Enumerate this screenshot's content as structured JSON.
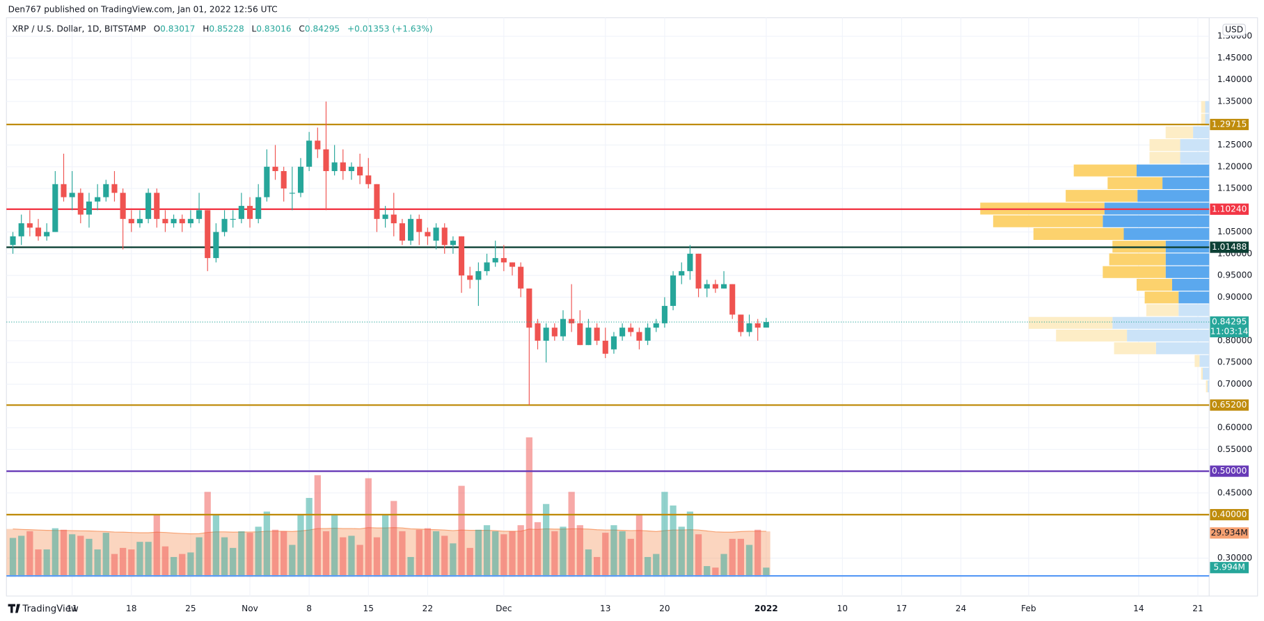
{
  "header": {
    "published": "Den767 published on TradingView.com, Jan 01, 2022 12:56 UTC",
    "footer": "TradingView"
  },
  "chart_data": {
    "type": "candlestick",
    "title": "XRP / U.S. Dollar, 1D, BITSTAMP",
    "currency": "USD",
    "ohlc_keys": [
      "O",
      "H",
      "L",
      "C"
    ],
    "change": "+0.01353 (+1.63%)",
    "countdown": "11:03:14",
    "up_color": "#26a69a",
    "down_color": "#ef5350",
    "grid": true,
    "ylim": [
      0.2574,
      1.5426
    ],
    "yticks": [
      {
        "value": 1.5,
        "label": "1.50000"
      },
      {
        "value": 1.45,
        "label": "1.45000"
      },
      {
        "value": 1.4,
        "label": "1.40000"
      },
      {
        "value": 1.35,
        "label": "1.35000"
      },
      {
        "value": 1.25,
        "label": "1.25000"
      },
      {
        "value": 1.2,
        "label": "1.20000"
      },
      {
        "value": 1.15,
        "label": "1.15000"
      },
      {
        "value": 1.05,
        "label": "1.05000"
      },
      {
        "value": 1.0,
        "label": "1.00000"
      },
      {
        "value": 0.95,
        "label": "0.95000"
      },
      {
        "value": 0.9,
        "label": "0.90000"
      },
      {
        "value": 0.8,
        "label": "0.80000"
      },
      {
        "value": 0.75,
        "label": "0.75000"
      },
      {
        "value": 0.7,
        "label": "0.70000"
      },
      {
        "value": 0.6,
        "label": "0.60000"
      },
      {
        "value": 0.55,
        "label": "0.55000"
      },
      {
        "value": 0.45,
        "label": "0.45000"
      },
      {
        "value": 0.3,
        "label": "0.30000"
      }
    ],
    "levels": [
      {
        "value": 1.29715,
        "color": "#bf8c0c"
      },
      {
        "value": 1.1024,
        "label": "1.10240",
        "color": "#f23645"
      },
      {
        "value": 1.01488,
        "color": "#0d4035"
      },
      {
        "value": 0.652,
        "label": "0.65200",
        "color": "#bf8c0c"
      },
      {
        "value": 0.5,
        "label": "0.50000",
        "color": "#673ab7"
      },
      {
        "value": 0.4,
        "label": "0.40000",
        "color": "#bf8c0c"
      }
    ],
    "categories": [
      null,
      null,
      null,
      null,
      null,
      null,
      null,
      "11",
      null,
      null,
      null,
      null,
      null,
      null,
      "18",
      null,
      null,
      null,
      null,
      null,
      null,
      "25",
      null,
      null,
      null,
      null,
      null,
      null,
      "Nov",
      null,
      null,
      null,
      null,
      null,
      null,
      "8",
      null,
      null,
      null,
      null,
      null,
      null,
      "15",
      null,
      null,
      null,
      null,
      null,
      null,
      "22",
      null,
      null,
      null,
      null,
      null,
      null,
      null,
      null,
      "Dec",
      null,
      null,
      null,
      null,
      null,
      null,
      null,
      null,
      null,
      null,
      null,
      "13",
      null,
      null,
      null,
      null,
      null,
      null,
      "20",
      null,
      null,
      null,
      null,
      null,
      null,
      null,
      null,
      null,
      null,
      null,
      "2022",
      null,
      null,
      null,
      null,
      null,
      null,
      null,
      null,
      "10",
      null,
      null,
      null,
      null,
      null,
      null,
      "17",
      null,
      null,
      null,
      null,
      null,
      null,
      "24",
      null,
      null,
      null,
      null,
      null,
      null,
      null,
      "Feb",
      null,
      null,
      null,
      null,
      null,
      null,
      null,
      null,
      null,
      null,
      null,
      null,
      "14",
      null,
      null,
      null,
      null,
      null,
      null,
      "21",
      null
    ],
    "open": [
      1.02,
      1.04,
      1.07,
      1.06,
      1.04,
      1.05,
      1.16,
      1.13,
      1.14,
      1.09,
      1.12,
      1.13,
      1.16,
      1.14,
      1.08,
      1.07,
      1.08,
      1.14,
      1.08,
      1.07,
      1.08,
      1.07,
      1.08,
      1.1,
      0.99,
      1.05,
      1.08,
      1.08,
      1.11,
      1.08,
      1.13,
      1.2,
      1.19,
      1.14,
      1.14,
      1.2,
      1.26,
      1.24,
      1.19,
      1.21,
      1.19,
      1.2,
      1.18,
      1.16,
      1.08,
      1.09,
      1.07,
      1.03,
      1.08,
      1.05,
      1.03,
      1.06,
      1.02,
      1.04,
      0.95,
      0.94,
      0.96,
      0.98,
      0.99,
      0.98,
      0.97,
      0.92,
      0.84,
      0.8,
      0.83,
      0.81,
      0.85,
      0.84,
      0.79,
      0.83,
      0.8,
      0.78,
      0.81,
      0.83,
      0.82,
      0.8,
      0.83,
      0.84,
      0.88,
      0.95,
      0.96,
      1.0,
      0.92,
      0.93,
      0.92,
      0.93,
      0.86,
      0.82,
      0.84,
      0.83017,
      null,
      null,
      null,
      null,
      null,
      null,
      null,
      null,
      null,
      null,
      null,
      null,
      null,
      null,
      null,
      null,
      null,
      null,
      null,
      null,
      null,
      null,
      null,
      null,
      null,
      null,
      null,
      null,
      null,
      null,
      null,
      null,
      null,
      null,
      null,
      null,
      null,
      null,
      null,
      null,
      null,
      null,
      null,
      null,
      null,
      null,
      null,
      null,
      null,
      null,
      null,
      null
    ],
    "high": [
      1.05,
      1.09,
      1.1,
      1.08,
      1.07,
      1.19,
      1.23,
      1.19,
      1.15,
      1.14,
      1.16,
      1.17,
      1.19,
      1.15,
      1.1,
      1.1,
      1.15,
      1.15,
      1.1,
      1.09,
      1.09,
      1.1,
      1.14,
      1.1,
      1.07,
      1.1,
      1.1,
      1.14,
      1.13,
      1.16,
      1.24,
      1.25,
      1.2,
      1.2,
      1.22,
      1.28,
      1.29,
      1.35,
      1.25,
      1.24,
      1.21,
      1.23,
      1.22,
      1.16,
      1.11,
      1.14,
      1.08,
      1.09,
      1.09,
      1.06,
      1.07,
      1.07,
      1.04,
      1.04,
      0.97,
      0.98,
      1.0,
      1.03,
      1.02,
      0.98,
      0.98,
      0.92,
      0.85,
      0.84,
      0.84,
      0.87,
      0.93,
      0.87,
      0.85,
      0.84,
      0.83,
      0.82,
      0.84,
      0.84,
      0.83,
      0.84,
      0.85,
      0.9,
      0.96,
      0.98,
      1.02,
      1.0,
      0.94,
      0.94,
      0.96,
      0.93,
      0.86,
      0.86,
      0.85,
      0.85228,
      null,
      null,
      null,
      null,
      null,
      null,
      null,
      null,
      null,
      null,
      null,
      null,
      null,
      null,
      null,
      null,
      null,
      null,
      null,
      null,
      null,
      null,
      null,
      null,
      null,
      null,
      null,
      null,
      null,
      null,
      null,
      null,
      null,
      null,
      null,
      null,
      null,
      null,
      null,
      null,
      null,
      null,
      null,
      null,
      null,
      null,
      null,
      null,
      null,
      null,
      null,
      null
    ],
    "low": [
      1.0,
      1.02,
      1.04,
      1.03,
      1.03,
      1.05,
      1.12,
      1.1,
      1.07,
      1.06,
      1.1,
      1.12,
      1.12,
      1.01,
      1.05,
      1.06,
      1.07,
      1.06,
      1.05,
      1.06,
      1.05,
      1.06,
      1.07,
      0.96,
      0.98,
      1.04,
      1.06,
      1.07,
      1.06,
      1.07,
      1.12,
      1.17,
      1.12,
      1.1,
      1.13,
      1.19,
      1.22,
      1.1,
      1.18,
      1.17,
      1.17,
      1.16,
      1.15,
      1.05,
      1.06,
      1.04,
      1.02,
      1.02,
      1.02,
      1.02,
      1.01,
      1.0,
      1.0,
      0.91,
      0.92,
      0.88,
      0.95,
      0.97,
      0.96,
      0.95,
      0.9,
      0.652,
      0.78,
      0.75,
      0.8,
      0.8,
      0.82,
      0.79,
      0.79,
      0.79,
      0.76,
      0.77,
      0.8,
      0.81,
      0.78,
      0.79,
      0.82,
      0.83,
      0.87,
      0.93,
      0.94,
      0.9,
      0.9,
      0.91,
      0.92,
      0.85,
      0.81,
      0.81,
      0.8,
      0.83016,
      null,
      null,
      null,
      null,
      null,
      null,
      null,
      null,
      null,
      null,
      null,
      null,
      null,
      null,
      null,
      null,
      null,
      null,
      null,
      null,
      null,
      null,
      null,
      null,
      null,
      null,
      null,
      null,
      null,
      null,
      null,
      null,
      null,
      null,
      null,
      null,
      null,
      null,
      null,
      null,
      null,
      null,
      null,
      null,
      null,
      null,
      null,
      null,
      null,
      null,
      null,
      null
    ],
    "close": [
      1.04,
      1.07,
      1.06,
      1.04,
      1.05,
      1.16,
      1.13,
      1.14,
      1.09,
      1.12,
      1.13,
      1.16,
      1.14,
      1.08,
      1.07,
      1.08,
      1.14,
      1.08,
      1.07,
      1.08,
      1.07,
      1.08,
      1.1,
      0.99,
      1.05,
      1.08,
      1.08,
      1.11,
      1.08,
      1.13,
      1.2,
      1.19,
      1.15,
      1.14,
      1.2,
      1.26,
      1.24,
      1.19,
      1.21,
      1.19,
      1.2,
      1.18,
      1.16,
      1.08,
      1.09,
      1.07,
      1.03,
      1.08,
      1.05,
      1.04,
      1.06,
      1.02,
      1.03,
      0.95,
      0.94,
      0.96,
      0.98,
      0.99,
      0.98,
      0.97,
      0.92,
      0.83,
      0.8,
      0.83,
      0.81,
      0.85,
      0.84,
      0.79,
      0.83,
      0.8,
      0.77,
      0.81,
      0.83,
      0.82,
      0.8,
      0.83,
      0.84,
      0.88,
      0.95,
      0.96,
      1.0,
      0.92,
      0.93,
      0.92,
      0.93,
      0.86,
      0.82,
      0.84,
      0.83,
      0.84295,
      null,
      null,
      null,
      null,
      null,
      null,
      null,
      null,
      null,
      null,
      null,
      null,
      null,
      null,
      null,
      null,
      null,
      null,
      null,
      null,
      null,
      null,
      null,
      null,
      null,
      null,
      null,
      null,
      null,
      null,
      null,
      null,
      null,
      null,
      null,
      null,
      null,
      null,
      null,
      null,
      null,
      null,
      null,
      null,
      null,
      null,
      null,
      null,
      null,
      null,
      null,
      null
    ],
    "volume": [
      25.6,
      27,
      30,
      18,
      18,
      32,
      31,
      28,
      27,
      25,
      18,
      29,
      15,
      19,
      18,
      23,
      23,
      41,
      20,
      13,
      15,
      16,
      26,
      56,
      41,
      26,
      19,
      30,
      29,
      33,
      43,
      31,
      30,
      21,
      41,
      52,
      67,
      30,
      41,
      26,
      27,
      21,
      65,
      26,
      41,
      50,
      30,
      13,
      31,
      32,
      30,
      27,
      22,
      60,
      19,
      31,
      34,
      30,
      28,
      30,
      34,
      92,
      36,
      48,
      30,
      33,
      56,
      34,
      18,
      13,
      29,
      34,
      30,
      25,
      41,
      13,
      15,
      56,
      47,
      33,
      43,
      28,
      7,
      6,
      15,
      25,
      25,
      21,
      31,
      5.994,
      null,
      null,
      null,
      null,
      null,
      null,
      null,
      null,
      null,
      null,
      null,
      null,
      null,
      null,
      null,
      null,
      null,
      null,
      null,
      null,
      null,
      null,
      null,
      null,
      null,
      null,
      null,
      null,
      null,
      null,
      null,
      null,
      null,
      null,
      null,
      null,
      null,
      null,
      null,
      null,
      null,
      null,
      null,
      null,
      null,
      null,
      null,
      null,
      null,
      null,
      null,
      null
    ],
    "volume_label": "5.994M",
    "volume_ma": [
      31.5,
      31.2,
      31,
      30.8,
      30.6,
      30.5,
      30.5,
      30.4,
      30.3,
      30.2,
      30,
      29.8,
      29.5,
      29.4,
      29.2,
      29,
      29,
      29.4,
      29.2,
      28.8,
      28.5,
      28.3,
      28.4,
      29.2,
      29.6,
      29.6,
      29.4,
      29.5,
      29.5,
      29.6,
      30,
      30,
      30,
      29.8,
      30.2,
      30.8,
      31.8,
      31.8,
      32,
      31.8,
      31.8,
      31.6,
      32.4,
      32.2,
      32.2,
      32.4,
      32.2,
      31.6,
      31.4,
      31.2,
      31,
      30.8,
      30.4,
      30.8,
      30.6,
      30.6,
      30.6,
      30.4,
      30,
      30,
      30,
      31.4,
      31.2,
      31.6,
      31.4,
      31.4,
      31.6,
      31.6,
      31.4,
      31,
      30.8,
      30.8,
      30.6,
      30.4,
      30.5,
      30.2,
      29.8,
      30.4,
      30.8,
      30.8,
      31,
      30.8,
      30.2,
      29.6,
      29.4,
      29.4,
      29.8,
      30,
      30,
      29.934,
      null,
      null,
      null,
      null,
      null,
      null,
      null,
      null,
      null,
      null,
      null,
      null,
      null,
      null,
      null,
      null,
      null,
      null,
      null,
      null,
      null,
      null,
      null,
      null,
      null,
      null,
      null,
      null,
      null,
      null,
      null,
      null,
      null,
      null,
      null,
      null,
      null,
      null,
      null,
      null,
      null,
      null,
      null,
      null,
      null,
      null,
      null,
      null,
      null,
      null,
      null,
      null
    ],
    "volume_ma_label": "29.934M",
    "volume_ma_color": "#f7a172",
    "volume_profile": {
      "bins": [
        1.352,
        1.3228,
        1.2936,
        1.2644,
        1.2352,
        1.206,
        1.1768,
        1.1476,
        1.1184,
        1.0892,
        1.06,
        1.0308,
        1.0016,
        0.9724,
        0.9432,
        0.914,
        0.8848,
        0.8556,
        0.8264,
        0.7972,
        0.768,
        0.7388,
        0.7096,
        0.6804
      ],
      "up": [
        5,
        5,
        34,
        38,
        38,
        78,
        68,
        89,
        154,
        136,
        112,
        66,
        70,
        78,
        44,
        42,
        40,
        104,
        88,
        52,
        6,
        2,
        2
      ],
      "down": [
        5,
        5,
        20,
        36,
        36,
        90,
        58,
        89,
        130,
        132,
        106,
        54,
        54,
        54,
        46,
        38,
        38,
        120,
        102,
        66,
        12,
        8,
        2
      ],
      "value_area": [
        0.8848,
        1.206
      ],
      "up_color": "#fcd26d",
      "down_color": "#5ba8ee",
      "up_color_outside": "#fdedc6",
      "down_color_outside": "#cbe3f8"
    }
  }
}
